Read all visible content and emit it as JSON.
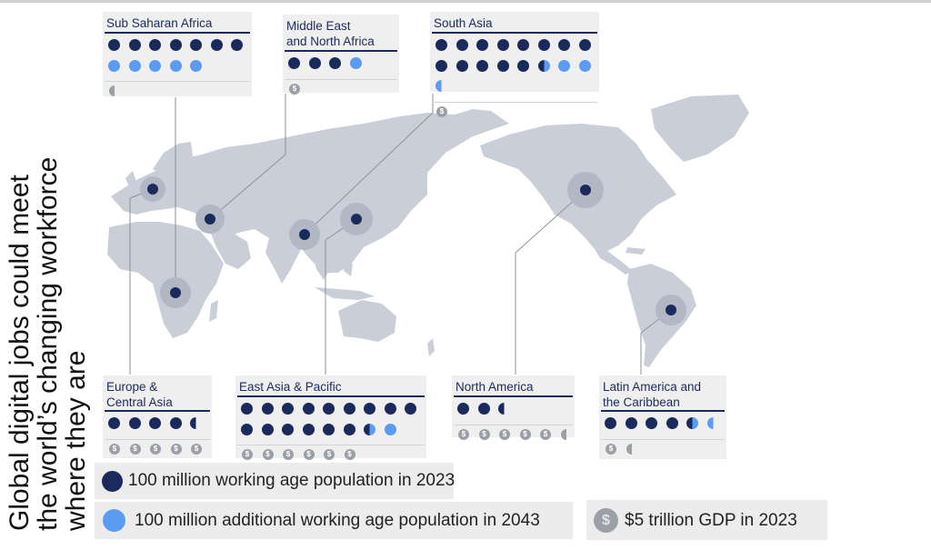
{
  "title": {
    "line1": "Global digital jobs could meet",
    "line2": "the world’s changing workforce",
    "line3": "where they are"
  },
  "colors": {
    "population_2023": "#1b2a5c",
    "additional_2043": "#5b9bf2",
    "gdp": "#9ba0a8",
    "map": "#c9ced8"
  },
  "regions": {
    "ssa": {
      "name": "Sub Saharan Africa",
      "population_2023": 7,
      "additional_2043": 5,
      "gdp_2023": 0.5
    },
    "mena": {
      "name": "Middle East\nand North Africa",
      "population_2023": 3,
      "additional_2043": 1,
      "gdp_2023": 1
    },
    "sa": {
      "name": "South Asia",
      "population_2023": 13.5,
      "additional_2043": 2.5,
      "gdp_2023": 1
    },
    "eca": {
      "name": "Europe &\nCentral Asia",
      "population_2023": 4.5,
      "additional_2043": 0,
      "gdp_2023": 5
    },
    "eap": {
      "name": "East Asia & Pacific",
      "population_2023": 15.5,
      "additional_2043": 1,
      "gdp_2023": 6
    },
    "na": {
      "name": "North America",
      "population_2023": 2.5,
      "additional_2043": 0,
      "gdp_2023": 5.5
    },
    "lac": {
      "name": "Latin America and\nthe Caribbean",
      "population_2023": 4.5,
      "additional_2043": 0.5,
      "gdp_2023": 1.5
    }
  },
  "legend": {
    "population_2023": "100 million working age population in 2023",
    "additional_2043": "100 million additional working age population in 2043",
    "gdp_2023": "$5 trillion GDP in 2023",
    "coin_symbol": "$"
  }
}
